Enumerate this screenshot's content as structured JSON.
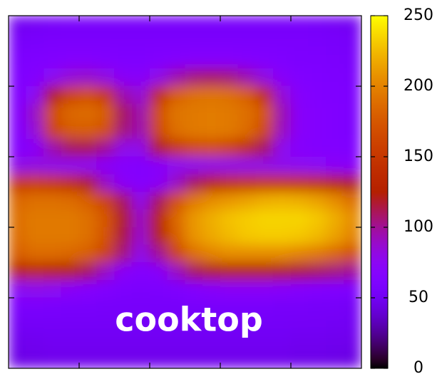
{
  "chart_data": {
    "type": "heatmap",
    "annotation": "cooktop",
    "values": [
      [
        50,
        52,
        54,
        55,
        55,
        55,
        55,
        55,
        55,
        55,
        55,
        55,
        55,
        55,
        55,
        55,
        55,
        54,
        52,
        50
      ],
      [
        55,
        57,
        58,
        58,
        58,
        58,
        58,
        58,
        58,
        58,
        58,
        58,
        58,
        58,
        58,
        58,
        58,
        57,
        56,
        54
      ],
      [
        60,
        62,
        64,
        66,
        66,
        64,
        62,
        62,
        64,
        66,
        68,
        68,
        68,
        66,
        64,
        62,
        60,
        60,
        58,
        56
      ],
      [
        62,
        66,
        75,
        85,
        88,
        82,
        72,
        70,
        80,
        95,
        105,
        108,
        105,
        95,
        82,
        70,
        64,
        62,
        60,
        58
      ],
      [
        64,
        75,
        120,
        160,
        170,
        150,
        95,
        85,
        140,
        180,
        190,
        192,
        190,
        180,
        140,
        85,
        68,
        64,
        62,
        60
      ],
      [
        66,
        90,
        170,
        185,
        188,
        180,
        110,
        95,
        170,
        192,
        195,
        196,
        195,
        190,
        175,
        95,
        70,
        66,
        63,
        60
      ],
      [
        66,
        85,
        160,
        178,
        180,
        170,
        105,
        95,
        165,
        190,
        195,
        196,
        195,
        188,
        165,
        92,
        70,
        66,
        63,
        60
      ],
      [
        66,
        72,
        95,
        110,
        112,
        100,
        80,
        80,
        120,
        150,
        165,
        168,
        160,
        140,
        110,
        78,
        68,
        66,
        64,
        62
      ],
      [
        80,
        82,
        80,
        78,
        76,
        72,
        68,
        66,
        70,
        76,
        78,
        80,
        80,
        80,
        80,
        78,
        76,
        74,
        72,
        70
      ],
      [
        150,
        155,
        150,
        140,
        120,
        90,
        72,
        68,
        72,
        90,
        110,
        130,
        140,
        145,
        148,
        148,
        145,
        140,
        130,
        120
      ],
      [
        185,
        190,
        190,
        188,
        180,
        160,
        110,
        80,
        110,
        170,
        195,
        205,
        210,
        215,
        220,
        222,
        220,
        215,
        205,
        190
      ],
      [
        190,
        195,
        195,
        195,
        190,
        175,
        120,
        90,
        130,
        185,
        210,
        220,
        228,
        232,
        235,
        235,
        235,
        230,
        220,
        205
      ],
      [
        188,
        195,
        195,
        195,
        190,
        172,
        115,
        88,
        125,
        180,
        208,
        218,
        225,
        230,
        232,
        232,
        230,
        225,
        215,
        200
      ],
      [
        180,
        188,
        188,
        185,
        180,
        160,
        105,
        80,
        100,
        160,
        190,
        200,
        205,
        205,
        205,
        205,
        200,
        195,
        185,
        170
      ],
      [
        130,
        135,
        130,
        125,
        110,
        90,
        72,
        66,
        70,
        90,
        110,
        120,
        125,
        125,
        125,
        120,
        115,
        110,
        105,
        100
      ],
      [
        75,
        78,
        76,
        72,
        68,
        64,
        60,
        58,
        60,
        62,
        66,
        70,
        72,
        72,
        72,
        70,
        68,
        66,
        64,
        62
      ],
      [
        58,
        58,
        57,
        56,
        56,
        55,
        55,
        55,
        55,
        55,
        56,
        56,
        56,
        56,
        56,
        55,
        55,
        54,
        54,
        52
      ],
      [
        52,
        53,
        53,
        53,
        53,
        53,
        53,
        53,
        53,
        53,
        53,
        53,
        53,
        53,
        53,
        53,
        52,
        52,
        51,
        50
      ],
      [
        48,
        49,
        50,
        50,
        50,
        50,
        50,
        50,
        50,
        50,
        50,
        50,
        50,
        50,
        50,
        50,
        49,
        49,
        48,
        47
      ],
      [
        45,
        46,
        47,
        47,
        47,
        47,
        47,
        47,
        47,
        47,
        47,
        47,
        47,
        47,
        47,
        47,
        46,
        46,
        45,
        44
      ]
    ],
    "zlim": [
      0,
      250
    ],
    "zticks": [
      0,
      50,
      100,
      150,
      200,
      250
    ]
  }
}
